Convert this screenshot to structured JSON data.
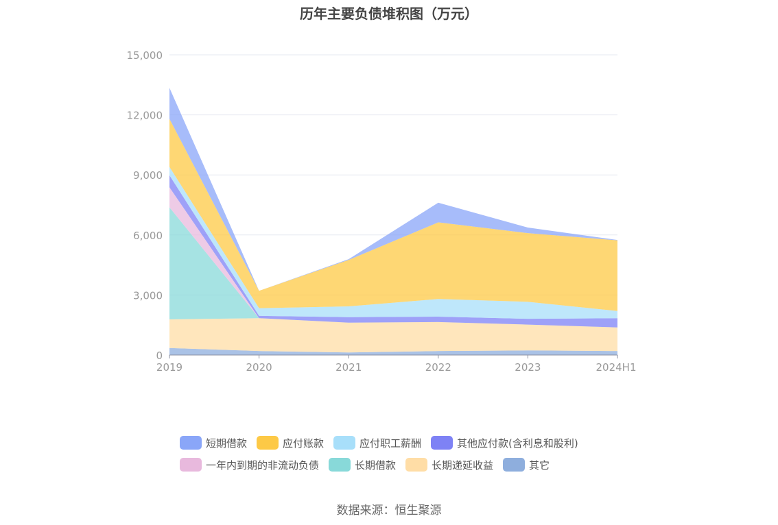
{
  "title": "历年主要负债堆积图（万元）",
  "source": "数据来源：恒生聚源",
  "chart_data": {
    "type": "area",
    "stacked": true,
    "title": "历年主要负债堆积图（万元）",
    "categories": [
      "2019",
      "2020",
      "2021",
      "2022",
      "2023",
      "2024H1"
    ],
    "ylim": [
      0,
      15000
    ],
    "yticks": [
      "0",
      "3,000",
      "6,000",
      "9,000",
      "12,000",
      "15,000"
    ],
    "ytick_values": [
      0,
      3000,
      6000,
      9000,
      12000,
      15000
    ],
    "grid": true,
    "legend_position": "bottom",
    "series": [
      {
        "name": "其它",
        "color": "#8eaedd",
        "values": [
          350,
          200,
          130,
          200,
          230,
          200
        ]
      },
      {
        "name": "长期递延收益",
        "color": "#ffdda6",
        "values": [
          1430,
          1640,
          1490,
          1450,
          1290,
          1180
        ]
      },
      {
        "name": "长期借款",
        "color": "#88d9d9",
        "values": [
          5600,
          0,
          0,
          0,
          0,
          0
        ]
      },
      {
        "name": "一年内到期的非流动负债",
        "color": "#e8b9dd",
        "values": [
          1000,
          0,
          0,
          0,
          0,
          0
        ]
      },
      {
        "name": "其他应付款(含利息和股利)",
        "color": "#7e82f5",
        "values": [
          600,
          120,
          270,
          270,
          290,
          460
        ]
      },
      {
        "name": "应付职工薪酬",
        "color": "#a8dffa",
        "values": [
          420,
          380,
          540,
          880,
          850,
          360
        ]
      },
      {
        "name": "应付账款",
        "color": "#fdc946",
        "values": [
          2400,
          870,
          2320,
          3830,
          3430,
          3530
        ]
      },
      {
        "name": "短期借款",
        "color": "#8aa6f8",
        "values": [
          1550,
          0,
          40,
          980,
          280,
          20
        ]
      }
    ],
    "legend_order": [
      "短期借款",
      "应付账款",
      "应付职工薪酬",
      "其他应付款(含利息和股利)",
      "一年内到期的非流动负债",
      "长期借款",
      "长期递延收益",
      "其它"
    ]
  }
}
